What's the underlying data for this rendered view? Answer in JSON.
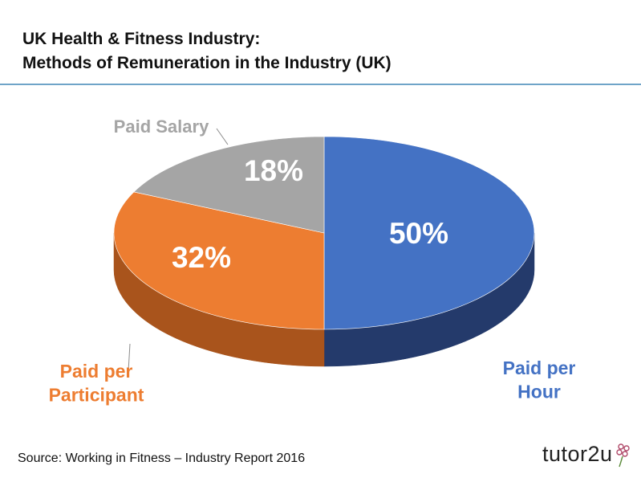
{
  "header": {
    "title_line1": "UK Health & Fitness Industry:",
    "title_line2": "Methods of Remuneration in the Industry (UK)"
  },
  "chart_data": {
    "type": "pie",
    "title": "UK Health & Fitness Industry: Methods of Remuneration in the Industry (UK)",
    "unit": "%",
    "slices": [
      {
        "label": "Paid per Hour",
        "label_lines": [
          "Paid per",
          "Hour"
        ],
        "value": 50,
        "value_label": "50%",
        "color": "#4472c4",
        "side_color": "#243a6b"
      },
      {
        "label": "Paid per Participant",
        "label_lines": [
          "Paid per",
          "Participant"
        ],
        "value": 32,
        "value_label": "32%",
        "color": "#ed7d31",
        "side_color": "#a9541c"
      },
      {
        "label": "Paid Salary",
        "label_lines": [
          "Paid Salary"
        ],
        "value": 18,
        "value_label": "18%",
        "color": "#a5a5a5",
        "side_color": "#6f6f6f"
      }
    ]
  },
  "footer": {
    "source": "Source: Working in Fitness – Industry Report 2016",
    "logo_text": "tutor2u"
  }
}
